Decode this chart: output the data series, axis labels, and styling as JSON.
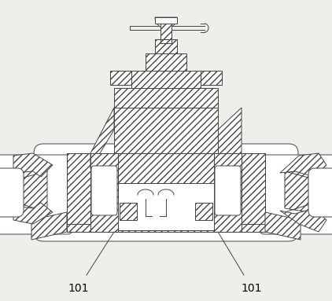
{
  "bg_color": "#f0eee8",
  "line_color": "#444444",
  "hatch_pattern": "////",
  "label_101_left": "101",
  "label_101_right": "101",
  "label_fontsize": 10,
  "fig_width": 4.22,
  "fig_height": 3.83,
  "dpi": 100
}
